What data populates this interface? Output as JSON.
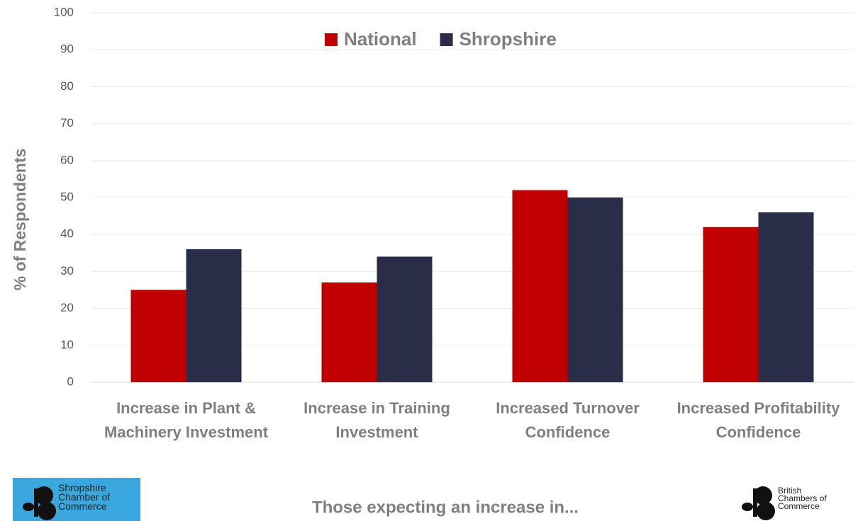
{
  "chart_data": {
    "type": "bar",
    "categories": [
      "Increase in Plant & Machinery Investment",
      "Increase in Training Investment",
      "Increased Turnover Confidence",
      "Increased Profitability Confidence"
    ],
    "series": [
      {
        "name": "National",
        "color": "#c00000",
        "values": [
          25,
          27,
          52,
          42
        ]
      },
      {
        "name": "Shropshire",
        "color": "#2a2d48",
        "values": [
          36,
          34,
          50,
          46
        ]
      }
    ],
    "y_label": "% of Respondents",
    "x_label": "Those expecting an increase in...",
    "ylim": [
      0,
      100
    ],
    "yticks": [
      0,
      10,
      20,
      30,
      40,
      50,
      60,
      70,
      80,
      90,
      100
    ],
    "grid": true,
    "legend": "top"
  },
  "logos": [
    "Shropshire Chamber of Commerce",
    "British Chambers of Commerce"
  ]
}
